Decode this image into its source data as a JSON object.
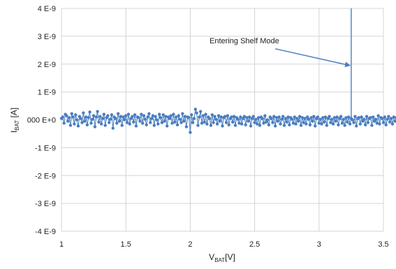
{
  "chart_data": {
    "type": "scatter",
    "title": "",
    "xlabel": {
      "main": "V",
      "sub": "BAT",
      "suffix": "[V]"
    },
    "ylabel": {
      "main": "I",
      "sub": "BAT",
      "suffix": " [A]"
    },
    "xlim": [
      1,
      3.5
    ],
    "ylim": [
      -4e-09,
      4e-09
    ],
    "x_ticks": [
      1,
      1.5,
      2,
      2.5,
      3,
      3.5
    ],
    "x_tick_labels": [
      "1",
      "1.5",
      "2",
      "2.5",
      "3",
      "3.5"
    ],
    "y_ticks": [
      4e-09,
      3e-09,
      2e-09,
      1e-09,
      0,
      -1e-09,
      -2e-09,
      -3e-09,
      -4e-09
    ],
    "y_tick_labels": [
      "4 E-9",
      "3 E-9",
      "2 E-9",
      "1 E-9",
      "000 E+0",
      "-1 E-9",
      "-2 E-9",
      "-3 E-9",
      "-4 E-9"
    ],
    "grid": true,
    "series": [
      {
        "color": "#4a7ebf",
        "marker": "circle",
        "line": true,
        "x_start": 1.0,
        "x_step": 0.01,
        "values": [
          5e-11,
          1e-10,
          -1.2e-10,
          2e-10,
          1.5e-10,
          -5e-11,
          8e-11,
          -2e-10,
          2.2e-10,
          1e-10,
          -1.5e-10,
          1.8e-10,
          0.0,
          -2.2e-10,
          1.2e-10,
          5e-11,
          -1e-10,
          2.5e-10,
          -5e-11,
          1e-10,
          -1.8e-10,
          8e-11,
          2.8e-10,
          -1.2e-10,
          2e-11,
          1.5e-10,
          -2.5e-10,
          1e-10,
          3e-10,
          -8e-11,
          1.2e-10,
          -1.5e-10,
          5e-11,
          2e-10,
          -2e-10,
          8e-11,
          1.5e-10,
          -1e-10,
          2e-11,
          1.8e-10,
          -3e-10,
          1e-10,
          5e-11,
          -1.2e-10,
          2.2e-10,
          -5e-11,
          1.2e-10,
          -2e-10,
          1e-10,
          0.0,
          1.5e-10,
          -1e-10,
          2e-10,
          -1.5e-10,
          5e-11,
          1.2e-10,
          -8e-11,
          1.8e-10,
          -2.2e-10,
          1e-10,
          8e-11,
          -5e-11,
          2e-10,
          -1.2e-10,
          1.5e-10,
          2e-11,
          -1.8e-10,
          1e-10,
          2.2e-10,
          -1e-10,
          5e-11,
          1.5e-10,
          -2e-10,
          1.2e-10,
          0.0,
          -1.5e-10,
          2e-10,
          8e-11,
          -1e-10,
          1.8e-10,
          -5e-11,
          1.2e-10,
          -2.2e-10,
          1e-10,
          5e-11,
          1.5e-10,
          -1.2e-10,
          2e-10,
          -8e-11,
          1e-10,
          -1.8e-10,
          1.5e-10,
          2e-11,
          -1e-10,
          2.2e-10,
          -5e-11,
          1.2e-10,
          -2.5e-10,
          1e-10,
          8e-11,
          -4.5e-10,
          1.8e-10,
          -1e-10,
          5e-11,
          3.8e-10,
          2.5e-10,
          -2e-10,
          1e-10,
          3e-10,
          -1.2e-10,
          1.5e-10,
          -8e-11,
          2e-10,
          -1.5e-10,
          1e-10,
          5e-11,
          -2e-10,
          1.8e-10,
          -1e-10,
          1.2e-10,
          2e-11,
          -1.5e-10,
          1.5e-10,
          -5e-11,
          1e-10,
          -2.2e-10,
          8e-11,
          1.2e-10,
          -1e-10,
          1.5e-10,
          -1.8e-10,
          5e-11,
          1e-10,
          -8e-11,
          1.2e-10,
          -2e-10,
          8e-11,
          2e-11,
          -1.2e-10,
          1e-10,
          -1.5e-10,
          5e-11,
          1.2e-10,
          -1.8e-10,
          8e-11,
          -5e-11,
          1e-10,
          -2.2e-10,
          5e-11,
          1.2e-10,
          -1e-10,
          2e-11,
          -1.5e-10,
          8e-11,
          -2e-10,
          1e-10,
          5e-11,
          -1.2e-10,
          1.5e-10,
          -8e-11,
          0.0,
          -1.8e-10,
          1e-10,
          5e-11,
          -1e-10,
          1.2e-10,
          -2.2e-10,
          8e-11,
          -5e-11,
          1e-10,
          -1.5e-10,
          2e-11,
          1.2e-10,
          -2e-10,
          5e-11,
          -8e-11,
          1e-10,
          -1.8e-10,
          8e-11,
          2e-11,
          -1.2e-10,
          1e-10,
          -1.5e-10,
          5e-11,
          -5e-11,
          1.2e-10,
          -2e-10,
          8e-11,
          -1e-10,
          5e-11,
          -1.5e-10,
          1e-10,
          2e-11,
          -1.8e-10,
          8e-11,
          -5e-11,
          1.2e-10,
          -2.2e-10,
          5e-11,
          1e-10,
          -1.2e-10,
          2e-11,
          -1.5e-10,
          8e-11,
          -8e-11,
          1e-10,
          -2e-10,
          5e-11,
          1.2e-10,
          -1e-10,
          2e-11,
          -1.5e-10,
          8e-11,
          -5e-11,
          1e-10,
          -1.8e-10,
          5e-11,
          1.2e-10,
          -1.2e-10,
          2e-11,
          -2e-10,
          8e-11,
          -8e-11,
          1e-10,
          -1.5e-10,
          5e-11,
          0.0,
          -1e-10,
          1.2e-10,
          -2.2e-10,
          5e-11,
          8e-11,
          -1.5e-10,
          1e-10,
          -5e-11,
          2e-11,
          -1.8e-10,
          1.2e-10,
          -1e-10,
          5e-11,
          8e-11,
          -2e-10,
          1e-10,
          -5e-11,
          2e-11,
          -1.2e-10,
          1.5e-10,
          -1.5e-10,
          8e-11,
          5e-11,
          -1e-10,
          1e-10,
          -1.8e-10,
          2e-11,
          1.2e-10,
          -8e-11,
          5e-11,
          -1.5e-10,
          1e-10,
          -5e-11,
          8e-11,
          -2e-10,
          1e-10,
          1.2e-10,
          -1e-10,
          5e-11,
          2e-11,
          1.5e-10,
          -5e-11,
          1e-10,
          5e-11,
          -8e-11,
          0.0,
          8e-11,
          -5e-11,
          1e-10,
          2e-11,
          -8e-11,
          5e-11,
          1e-10,
          -5e-11,
          0.0,
          8e-11,
          -8e-11
        ]
      }
    ],
    "spike": {
      "x": 3.25,
      "y_from": 0.0,
      "y_to": 4e-09
    },
    "annotations": [
      {
        "text": "Entering Shelf Mode",
        "anchor_x": 2.15,
        "anchor_y": 2.75e-09,
        "arrow_from_x": 2.66,
        "arrow_from_y": 2.55e-09,
        "arrow_to_x": 3.24,
        "arrow_to_y": 1.95e-09
      }
    ]
  }
}
